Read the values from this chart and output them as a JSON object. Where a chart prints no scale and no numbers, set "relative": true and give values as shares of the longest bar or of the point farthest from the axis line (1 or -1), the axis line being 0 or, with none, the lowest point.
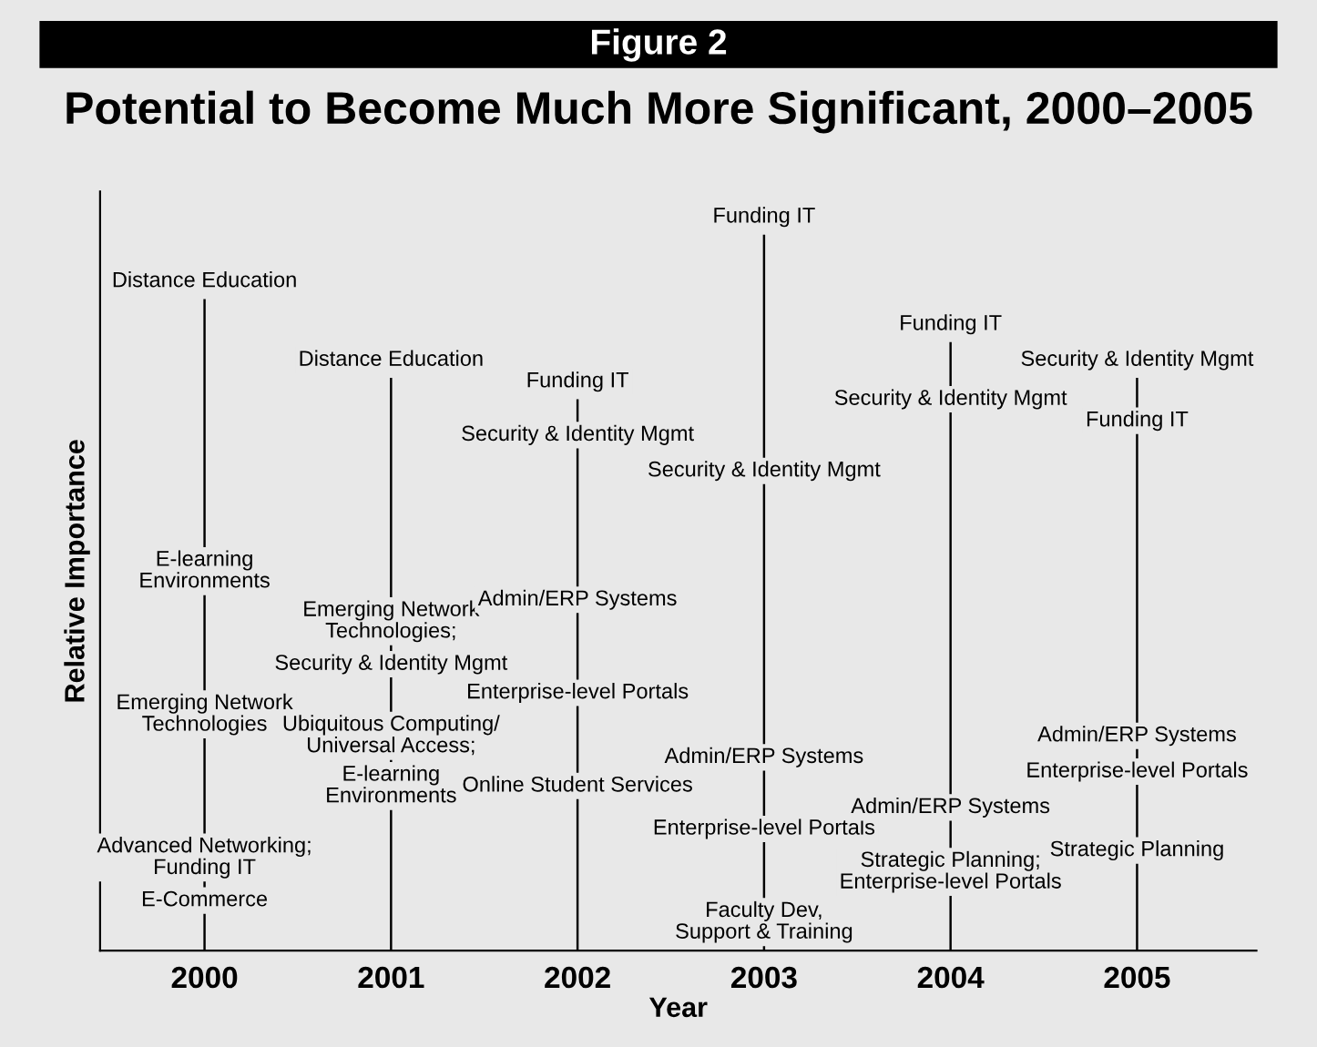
{
  "chart_data": {
    "type": "bar",
    "title": "Figure 2",
    "subtitle": "Potential to Become Much More Significant, 2000–2005",
    "xlabel": "Year",
    "ylabel": "Relative Importance",
    "relative": true,
    "color": "#000000",
    "grid": false,
    "legend": false,
    "categories": [
      "2000",
      "2001",
      "2002",
      "2003",
      "2004",
      "2005"
    ],
    "values": [
      0.91,
      0.8,
      0.77,
      1,
      0.85,
      0.8
    ],
    "annotations": [
      {
        "text": "Distance Education",
        "x": "2000",
        "y": 0.91
      },
      {
        "text": "E-learning\nEnvironments",
        "x": "2000",
        "y": 0.53
      },
      {
        "text": "Emerging Network\nTechnologies",
        "x": "2000",
        "y": 0.33
      },
      {
        "text": "Advanced Networking;\nFunding IT",
        "x": "2000",
        "y": 0.13
      },
      {
        "text": "E-Commerce",
        "x": "2000",
        "y": 0.07
      },
      {
        "text": "Distance Education",
        "x": "2001",
        "y": 0.8
      },
      {
        "text": "Emerging Network\nTechnologies;",
        "x": "2001",
        "y": 0.46
      },
      {
        "text": "Security & Identity Mgmt",
        "x": "2001",
        "y": 0.4
      },
      {
        "text": "Ubiquitous Computing/\nUniversal Access;",
        "x": "2001",
        "y": 0.3
      },
      {
        "text": "E-learning\nEnvironments",
        "x": "2001",
        "y": 0.23
      },
      {
        "text": "Funding IT",
        "x": "2002",
        "y": 0.77
      },
      {
        "text": "Security & Identity Mgmt",
        "x": "2002",
        "y": 0.72
      },
      {
        "text": "Admin/ERP Systems",
        "x": "2002",
        "y": 0.49
      },
      {
        "text": "Enterprise-level Portals",
        "x": "2002",
        "y": 0.36
      },
      {
        "text": "Online Student Services",
        "x": "2002",
        "y": 0.23
      },
      {
        "text": "Funding IT",
        "x": "2003",
        "y": 1
      },
      {
        "text": "Security & Identity Mgmt",
        "x": "2003",
        "y": 0.67
      },
      {
        "text": "Admin/ERP Systems",
        "x": "2003",
        "y": 0.27
      },
      {
        "text": "Enterprise-level Portals",
        "x": "2003",
        "y": 0.17
      },
      {
        "text": "Faculty Dev,\nSupport & Training",
        "x": "2003",
        "y": 0.04
      },
      {
        "text": "Funding IT",
        "x": "2004",
        "y": 0.85
      },
      {
        "text": "Security & Identity Mgmt",
        "x": "2004",
        "y": 0.77
      },
      {
        "text": "Admin/ERP Systems",
        "x": "2004",
        "y": 0.2
      },
      {
        "text": "Strategic Planning;\nEnterprise-level Portals",
        "x": "2004",
        "y": 0.11
      },
      {
        "text": "Security & Identity Mgmt",
        "x": "2005",
        "y": 0.8
      },
      {
        "text": "Funding IT",
        "x": "2005",
        "y": 0.74
      },
      {
        "text": "Admin/ERP Systems",
        "x": "2005",
        "y": 0.3
      },
      {
        "text": "Enterprise-level Portals",
        "x": "2005",
        "y": 0.25
      },
      {
        "text": "Strategic Planning",
        "x": "2005",
        "y": 0.14
      }
    ]
  }
}
